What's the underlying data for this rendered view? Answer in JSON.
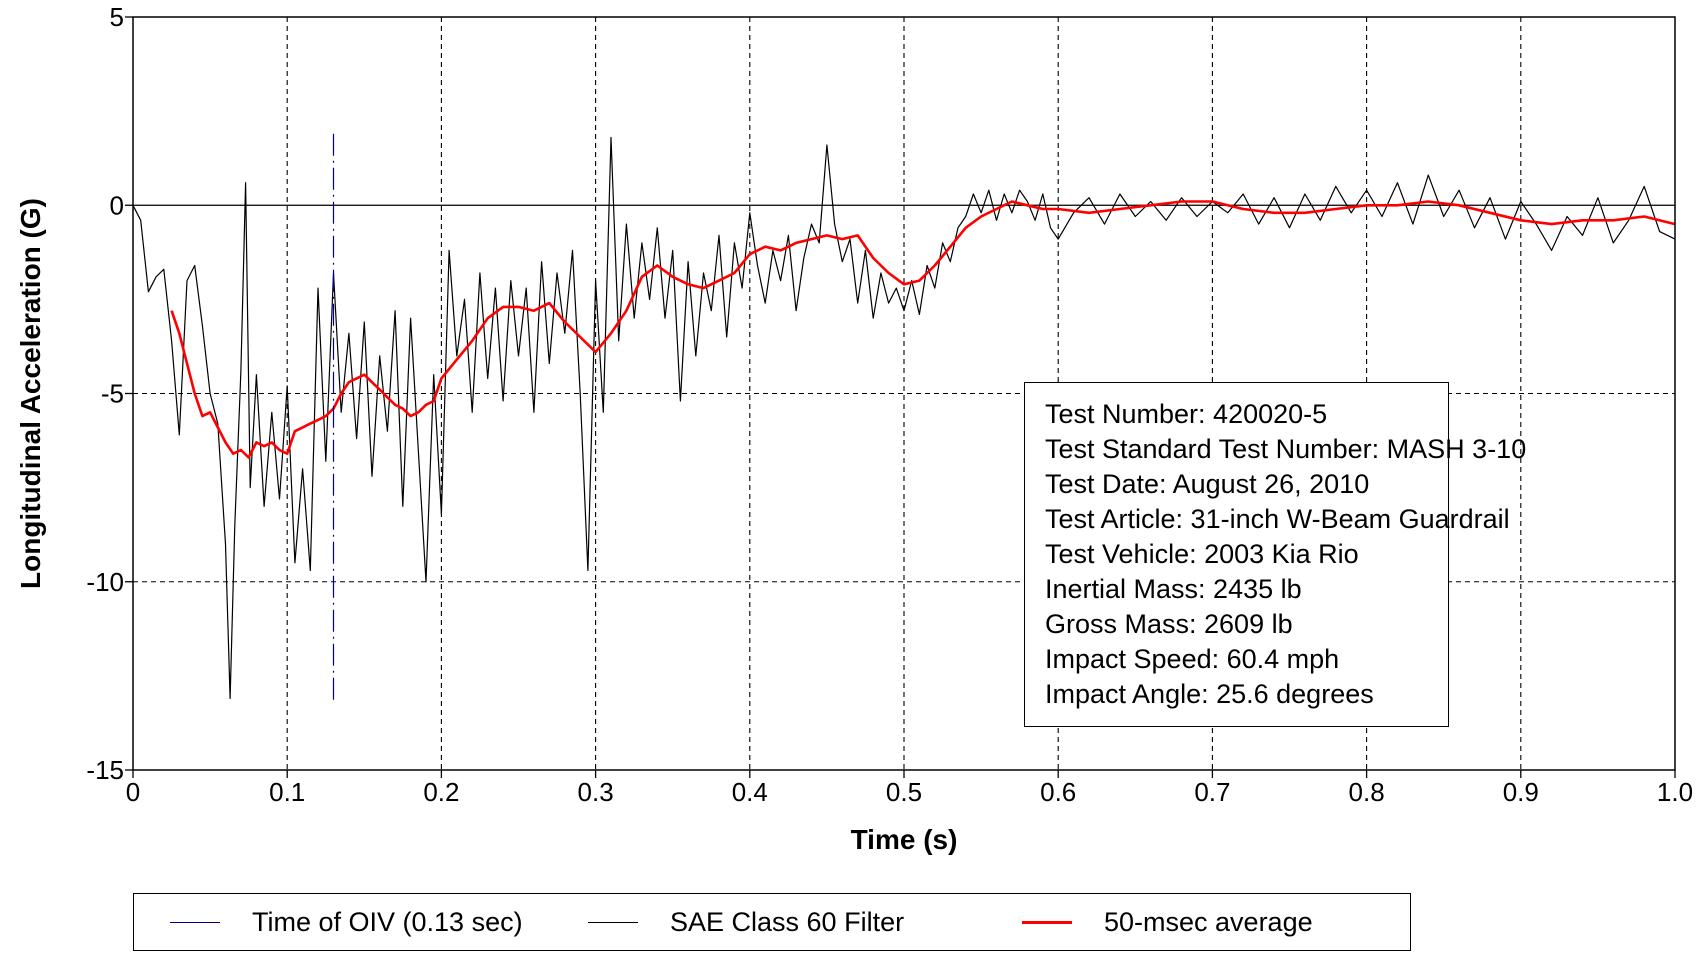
{
  "chart_data": {
    "type": "line",
    "title": "",
    "xlabel": "Time (s)",
    "ylabel": "Longitudinal Acceleration (G)",
    "xlim": [
      0,
      1.0
    ],
    "ylim": [
      -15,
      5
    ],
    "x_ticks": [
      0,
      0.1,
      0.2,
      0.3,
      0.4,
      0.5,
      0.6,
      0.7,
      0.8,
      0.9,
      1.0
    ],
    "x_tick_labels": [
      "0",
      "0.1",
      "0.2",
      "0.3",
      "0.4",
      "0.5",
      "0.6",
      "0.7",
      "0.8",
      "0.9",
      "1.0"
    ],
    "y_ticks": [
      5,
      0,
      -5,
      -10,
      -15
    ],
    "y_tick_labels": [
      "5",
      "0",
      "-5",
      "-10",
      "-15"
    ],
    "grid": true,
    "legend_position": "bottom",
    "annotation_lines": [
      "Test Number: 420020-5",
      "Test Standard Test Number: MASH 3-10",
      "Test Date: August 26, 2010",
      "Test Article: 31-inch W-Beam Guardrail",
      "Test Vehicle: 2003 Kia Rio",
      "Inertial Mass: 2435 lb",
      "Gross Mass: 2609 lb",
      "Impact Speed: 60.4 mph",
      "Impact Angle: 25.6 degrees"
    ],
    "series": [
      {
        "name": "Time of OIV (0.13 sec)",
        "color": "#00008b",
        "style": "dashdot",
        "x": [
          0.13,
          0.13
        ],
        "y": [
          1.9,
          -13.2
        ]
      },
      {
        "name": "SAE Class 60 Filter",
        "color": "#000000",
        "style": "solid",
        "x": [
          0,
          0.005,
          0.01,
          0.015,
          0.02,
          0.025,
          0.03,
          0.035,
          0.04,
          0.045,
          0.05,
          0.055,
          0.06,
          0.063,
          0.066,
          0.07,
          0.073,
          0.076,
          0.08,
          0.085,
          0.09,
          0.095,
          0.1,
          0.105,
          0.11,
          0.115,
          0.12,
          0.125,
          0.13,
          0.135,
          0.14,
          0.145,
          0.15,
          0.155,
          0.16,
          0.165,
          0.17,
          0.175,
          0.18,
          0.185,
          0.19,
          0.195,
          0.2,
          0.205,
          0.21,
          0.215,
          0.22,
          0.225,
          0.23,
          0.235,
          0.24,
          0.245,
          0.25,
          0.255,
          0.26,
          0.265,
          0.27,
          0.275,
          0.28,
          0.285,
          0.29,
          0.295,
          0.3,
          0.305,
          0.31,
          0.315,
          0.32,
          0.325,
          0.33,
          0.335,
          0.34,
          0.345,
          0.35,
          0.355,
          0.36,
          0.365,
          0.37,
          0.375,
          0.38,
          0.385,
          0.39,
          0.395,
          0.4,
          0.405,
          0.41,
          0.415,
          0.42,
          0.425,
          0.43,
          0.435,
          0.44,
          0.445,
          0.45,
          0.455,
          0.46,
          0.465,
          0.47,
          0.475,
          0.48,
          0.485,
          0.49,
          0.495,
          0.5,
          0.505,
          0.51,
          0.515,
          0.52,
          0.525,
          0.53,
          0.535,
          0.54,
          0.545,
          0.55,
          0.555,
          0.56,
          0.565,
          0.57,
          0.575,
          0.58,
          0.585,
          0.59,
          0.595,
          0.6,
          0.61,
          0.62,
          0.63,
          0.64,
          0.65,
          0.66,
          0.67,
          0.68,
          0.69,
          0.7,
          0.71,
          0.72,
          0.73,
          0.74,
          0.75,
          0.76,
          0.77,
          0.78,
          0.79,
          0.8,
          0.81,
          0.82,
          0.83,
          0.84,
          0.85,
          0.86,
          0.87,
          0.88,
          0.89,
          0.9,
          0.91,
          0.92,
          0.93,
          0.94,
          0.95,
          0.96,
          0.97,
          0.98,
          0.99,
          1.0
        ],
        "y": [
          0,
          -0.4,
          -2.3,
          -1.9,
          -1.7,
          -3.6,
          -6.1,
          -2.0,
          -1.6,
          -3.2,
          -5.0,
          -5.8,
          -9.0,
          -13.1,
          -8.5,
          -4.4,
          0.6,
          -7.5,
          -4.5,
          -8.0,
          -5.5,
          -7.8,
          -4.8,
          -9.5,
          -7.0,
          -9.7,
          -2.2,
          -6.8,
          -1.8,
          -5.5,
          -3.4,
          -6.2,
          -3.1,
          -7.2,
          -4.0,
          -6.0,
          -2.8,
          -8.0,
          -3.0,
          -6.5,
          -10.0,
          -4.5,
          -8.2,
          -1.2,
          -4.0,
          -2.5,
          -5.5,
          -1.8,
          -4.6,
          -2.2,
          -5.2,
          -2.0,
          -4.0,
          -2.2,
          -5.5,
          -1.5,
          -4.2,
          -1.8,
          -3.4,
          -1.2,
          -5.0,
          -9.7,
          -2.0,
          -5.5,
          1.8,
          -3.6,
          -0.5,
          -3.0,
          -1.0,
          -2.5,
          -0.6,
          -3.0,
          -1.2,
          -5.2,
          -1.5,
          -4.0,
          -1.8,
          -2.8,
          -0.8,
          -3.5,
          -1.0,
          -2.2,
          -0.2,
          -1.6,
          -2.6,
          -1.2,
          -2.0,
          -0.8,
          -2.8,
          -1.4,
          -0.5,
          -1.0,
          1.6,
          -0.5,
          -1.5,
          -0.9,
          -2.6,
          -1.2,
          -3.0,
          -1.8,
          -2.6,
          -2.2,
          -2.8,
          -2.0,
          -2.9,
          -1.6,
          -2.2,
          -1.0,
          -1.5,
          -0.6,
          -0.3,
          0.3,
          -0.2,
          0.4,
          -0.4,
          0.3,
          -0.2,
          0.4,
          0.1,
          -0.4,
          0.3,
          -0.6,
          -0.9,
          -0.2,
          0.2,
          -0.5,
          0.3,
          -0.3,
          0.1,
          -0.4,
          0.2,
          -0.3,
          0.1,
          -0.2,
          0.3,
          -0.5,
          0.2,
          -0.6,
          0.3,
          -0.4,
          0.5,
          -0.2,
          0.4,
          -0.3,
          0.6,
          -0.5,
          0.8,
          -0.3,
          0.4,
          -0.6,
          0.2,
          -0.9,
          0.1,
          -0.5,
          -1.2,
          -0.3,
          -0.8,
          0.2,
          -1.0,
          -0.4,
          0.5,
          -0.7,
          -0.9
        ]
      },
      {
        "name": "50-msec average",
        "color": "#ff0000",
        "style": "solid",
        "x": [
          0.025,
          0.03,
          0.035,
          0.04,
          0.045,
          0.05,
          0.055,
          0.06,
          0.065,
          0.07,
          0.075,
          0.08,
          0.085,
          0.09,
          0.095,
          0.1,
          0.105,
          0.11,
          0.115,
          0.12,
          0.125,
          0.13,
          0.135,
          0.14,
          0.145,
          0.15,
          0.155,
          0.16,
          0.165,
          0.17,
          0.175,
          0.18,
          0.185,
          0.19,
          0.195,
          0.2,
          0.21,
          0.22,
          0.23,
          0.24,
          0.25,
          0.26,
          0.27,
          0.28,
          0.29,
          0.3,
          0.31,
          0.32,
          0.33,
          0.34,
          0.35,
          0.36,
          0.37,
          0.38,
          0.39,
          0.4,
          0.41,
          0.42,
          0.43,
          0.44,
          0.45,
          0.46,
          0.47,
          0.48,
          0.49,
          0.5,
          0.51,
          0.52,
          0.53,
          0.54,
          0.55,
          0.56,
          0.57,
          0.58,
          0.59,
          0.6,
          0.62,
          0.64,
          0.66,
          0.68,
          0.7,
          0.72,
          0.74,
          0.76,
          0.78,
          0.8,
          0.82,
          0.84,
          0.86,
          0.88,
          0.9,
          0.92,
          0.94,
          0.96,
          0.98,
          1.0
        ],
        "y": [
          -2.8,
          -3.4,
          -4.2,
          -5.0,
          -5.6,
          -5.5,
          -5.9,
          -6.3,
          -6.6,
          -6.5,
          -6.7,
          -6.3,
          -6.4,
          -6.3,
          -6.5,
          -6.6,
          -6.0,
          -5.9,
          -5.8,
          -5.7,
          -5.6,
          -5.4,
          -5.0,
          -4.7,
          -4.6,
          -4.5,
          -4.7,
          -4.9,
          -5.1,
          -5.3,
          -5.4,
          -5.6,
          -5.5,
          -5.3,
          -5.2,
          -4.6,
          -4.1,
          -3.6,
          -3.0,
          -2.7,
          -2.7,
          -2.8,
          -2.6,
          -3.1,
          -3.5,
          -3.9,
          -3.4,
          -2.8,
          -1.9,
          -1.6,
          -1.9,
          -2.1,
          -2.2,
          -2.0,
          -1.8,
          -1.3,
          -1.1,
          -1.2,
          -1.0,
          -0.9,
          -0.8,
          -0.9,
          -0.8,
          -1.4,
          -1.8,
          -2.1,
          -2.0,
          -1.6,
          -1.1,
          -0.6,
          -0.3,
          -0.1,
          0.1,
          0.0,
          -0.1,
          -0.1,
          -0.2,
          -0.1,
          0.0,
          0.1,
          0.1,
          -0.1,
          -0.2,
          -0.2,
          -0.1,
          0.0,
          0.0,
          0.1,
          0.0,
          -0.2,
          -0.4,
          -0.5,
          -0.4,
          -0.4,
          -0.3,
          -0.5
        ]
      }
    ]
  }
}
